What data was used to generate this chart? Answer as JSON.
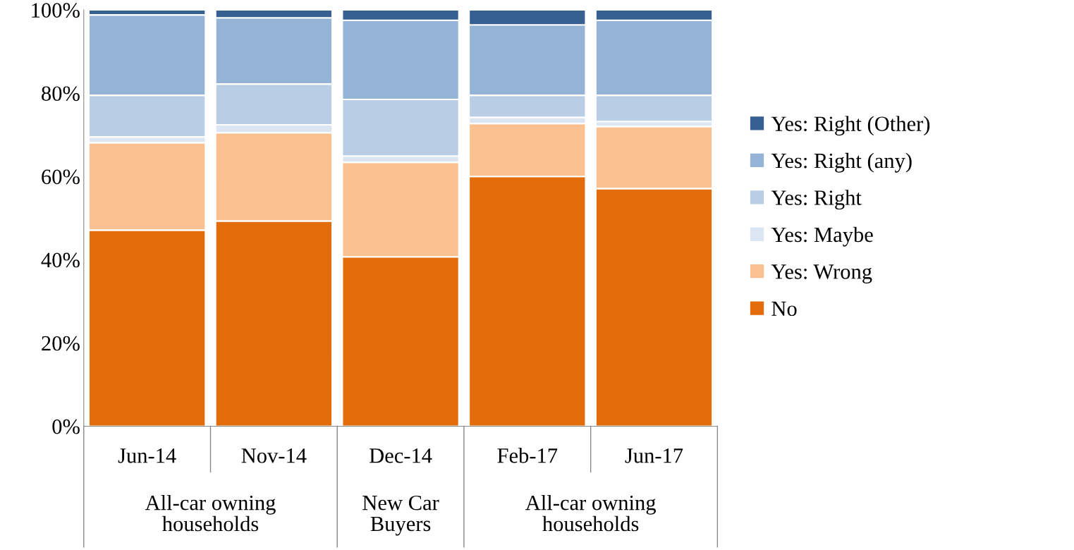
{
  "chart_data": {
    "type": "bar",
    "stacked": true,
    "categories": [
      "Jun-14",
      "Nov-14",
      "Dec-14",
      "Feb-17",
      "Jun-17"
    ],
    "series": [
      {
        "name": "No",
        "color": "#e36c0a",
        "values": [
          47.1,
          49.3,
          40.7,
          60.0,
          57.1
        ]
      },
      {
        "name": "Yes: Wrong",
        "color": "#fac090",
        "values": [
          21.0,
          21.2,
          22.7,
          12.7,
          14.9
        ]
      },
      {
        "name": "Yes: Maybe",
        "color": "#dce6f2",
        "values": [
          1.4,
          1.9,
          1.5,
          1.5,
          1.2
        ]
      },
      {
        "name": "Yes: Right",
        "color": "#b9cde5",
        "values": [
          10.0,
          9.8,
          13.6,
          5.3,
          6.3
        ]
      },
      {
        "name": "Yes: Right (any)",
        "color": "#95b3d7",
        "values": [
          19.3,
          15.9,
          19.0,
          16.9,
          18.0
        ]
      },
      {
        "name": "Yes: Right (Other)",
        "color": "#376092",
        "values": [
          1.2,
          1.9,
          2.5,
          3.6,
          2.5
        ]
      }
    ],
    "ylim": [
      0,
      100
    ],
    "yticks": [
      {
        "value": 0,
        "label": "0%"
      },
      {
        "value": 20,
        "label": "20%"
      },
      {
        "value": 40,
        "label": "40%"
      },
      {
        "value": 60,
        "label": "60%"
      },
      {
        "value": 80,
        "label": "80%"
      },
      {
        "value": 100,
        "label": "100%"
      }
    ],
    "grid": false,
    "legend": "right",
    "annotations": [
      "All-car owning households",
      "New Car Buyers",
      "All-car owning households"
    ]
  }
}
